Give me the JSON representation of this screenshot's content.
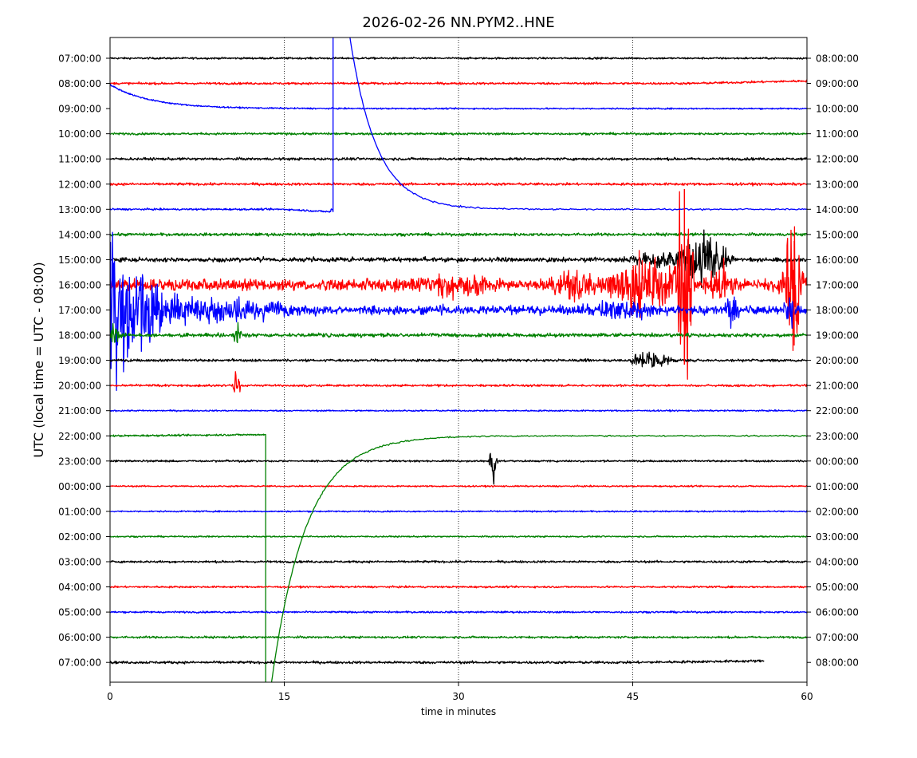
{
  "chart_data": {
    "type": "line",
    "title": "2026-02-26 NN.PYM2..HNE",
    "xlabel": "time in minutes",
    "ylabel": "UTC (local time = UTC - 08:00)",
    "xlim": [
      0,
      60
    ],
    "xticks": [
      0,
      15,
      30,
      45,
      60
    ],
    "xtick_labels": [
      "0",
      "15",
      "30",
      "45",
      "60"
    ],
    "grid_x": [
      15,
      30,
      45
    ],
    "colors": [
      "#000000",
      "#ff0000",
      "#0000ff",
      "#008000"
    ],
    "left_labels": [
      "07:00:00",
      "08:00:00",
      "09:00:00",
      "10:00:00",
      "11:00:00",
      "12:00:00",
      "13:00:00",
      "14:00:00",
      "15:00:00",
      "16:00:00",
      "17:00:00",
      "18:00:00",
      "19:00:00",
      "20:00:00",
      "21:00:00",
      "22:00:00",
      "23:00:00",
      "00:00:00",
      "01:00:00",
      "02:00:00",
      "03:00:00",
      "04:00:00",
      "05:00:00",
      "06:00:00",
      "07:00:00"
    ],
    "right_labels": [
      "08:00:00",
      "09:00:00",
      "10:00:00",
      "11:00:00",
      "12:00:00",
      "13:00:00",
      "14:00:00",
      "15:00:00",
      "16:00:00",
      "17:00:00",
      "18:00:00",
      "19:00:00",
      "20:00:00",
      "21:00:00",
      "22:00:00",
      "23:00:00",
      "00:00:00",
      "01:00:00",
      "02:00:00",
      "03:00:00",
      "04:00:00",
      "05:00:00",
      "06:00:00",
      "07:00:00",
      "08:00:00"
    ],
    "traces": [
      {
        "noise": 0.025,
        "end": 60
      },
      {
        "noise": 0.03,
        "end": 60,
        "drift": [
          50,
          60,
          0.1
        ]
      },
      {
        "noise": 0.02,
        "end": 60,
        "decay_start": [
          0,
          0.95,
          3.5
        ]
      },
      {
        "noise": 0.03,
        "end": 60
      },
      {
        "noise": 0.035,
        "end": 60
      },
      {
        "noise": 0.035,
        "end": 60
      },
      {
        "noise": 0.025,
        "end": 60,
        "drift": [
          15,
          19,
          -0.1
        ],
        "step_up": 19.2
      },
      {
        "noise": 0.04,
        "end": 60
      },
      {
        "noise": 0.06,
        "end": 60,
        "bursts": [
          [
            50.5,
            1.8,
            0.7
          ],
          [
            52,
            1.2,
            0.5
          ],
          [
            47,
            2,
            0.25
          ]
        ]
      },
      {
        "noise": 0.15,
        "end": 60,
        "bursts": [
          [
            49.4,
            0.6,
            3.8
          ],
          [
            46,
            3,
            0.8
          ],
          [
            40,
            2,
            0.5
          ],
          [
            58.8,
            0.8,
            1.8
          ],
          [
            58.2,
            0.3,
            1.2
          ],
          [
            52.5,
            1.2,
            0.6
          ],
          [
            30,
            3,
            0.35
          ]
        ]
      },
      {
        "noise": 0.12,
        "end": 60,
        "bursts": [
          [
            0.2,
            1.2,
            2.2
          ],
          [
            1.5,
            2.5,
            1.1
          ],
          [
            3.5,
            4,
            0.55
          ],
          [
            10,
            5,
            0.35
          ],
          [
            53.5,
            0.4,
            0.9
          ],
          [
            58.5,
            0.5,
            0.5
          ],
          [
            44,
            3,
            0.3
          ]
        ],
        "big_spike": [
          1.5,
          2.0
        ]
      },
      {
        "noise": 0.05,
        "end": 60,
        "bursts": [
          [
            11,
            0.3,
            0.35
          ],
          [
            0.3,
            0.6,
            0.3
          ]
        ]
      },
      {
        "noise": 0.035,
        "end": 60,
        "bursts": [
          [
            46.5,
            1.5,
            0.3
          ]
        ]
      },
      {
        "noise": 0.03,
        "end": 60,
        "bursts": [
          [
            10.9,
            0.25,
            0.45
          ]
        ]
      },
      {
        "noise": 0.02,
        "end": 60
      },
      {
        "noise": 0.025,
        "end": 60,
        "drift": [
          0,
          13.4,
          0.05
        ],
        "step_down": 13.4
      },
      {
        "noise": 0.025,
        "end": 60,
        "bursts": [
          [
            33,
            0.25,
            0.9
          ]
        ]
      },
      {
        "noise": 0.02,
        "end": 60
      },
      {
        "noise": 0.02,
        "end": 60
      },
      {
        "noise": 0.02,
        "end": 60
      },
      {
        "noise": 0.03,
        "end": 60
      },
      {
        "noise": 0.025,
        "end": 60
      },
      {
        "noise": 0.025,
        "end": 60
      },
      {
        "noise": 0.03,
        "end": 60
      },
      {
        "noise": 0.035,
        "end": 56.3,
        "drift": [
          45,
          56.3,
          0.06
        ]
      }
    ]
  }
}
